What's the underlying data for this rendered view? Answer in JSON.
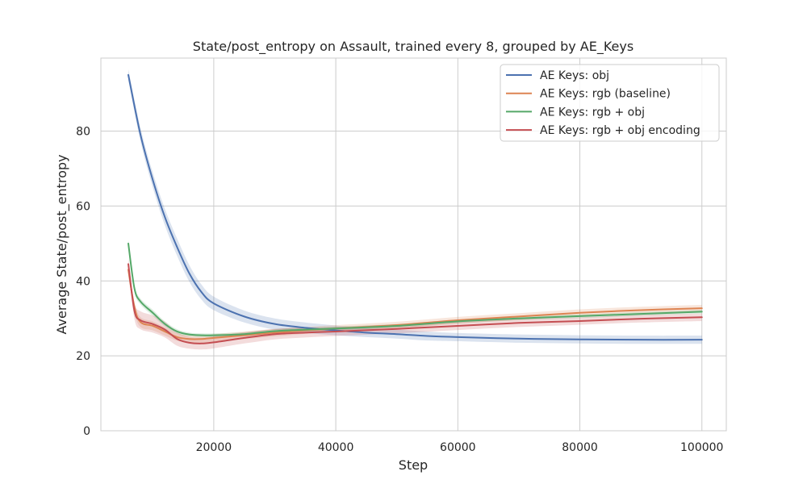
{
  "chart_data": {
    "type": "line",
    "title": "State/post_entropy on Assault, trained every 8, grouped by AE_Keys",
    "xlabel": "Step",
    "ylabel": "Average State/post_entropy",
    "xlim": [
      1500,
      104000
    ],
    "ylim": [
      0,
      99.5
    ],
    "xticks": [
      20000,
      40000,
      60000,
      80000,
      100000
    ],
    "xtick_labels": [
      "20000",
      "40000",
      "60000",
      "80000",
      "100000"
    ],
    "yticks": [
      0,
      20,
      40,
      60,
      80
    ],
    "ytick_labels": [
      "0",
      "20",
      "40",
      "60",
      "80"
    ],
    "grid": true,
    "legend_position": "top-right",
    "series": [
      {
        "name": "AE Keys: obj",
        "color": "#4c72b0",
        "x": [
          6000,
          8000,
          10000,
          12000,
          14000,
          16000,
          18000,
          20000,
          25000,
          30000,
          35000,
          40000,
          45000,
          50000,
          55000,
          60000,
          70000,
          80000,
          90000,
          100000
        ],
        "y": [
          95,
          79,
          67,
          57,
          49,
          42,
          37,
          34,
          30.5,
          28.5,
          27.5,
          26.8,
          26.2,
          25.8,
          25.3,
          25,
          24.6,
          24.4,
          24.3,
          24.3
        ],
        "band": [
          1.5,
          1.8,
          2.0,
          2.2,
          2.3,
          2.2,
          2.0,
          1.8,
          1.6,
          1.5,
          1.4,
          1.3,
          1.2,
          1.2,
          1.2,
          1.1,
          1.1,
          1.1,
          1.1,
          1.1
        ]
      },
      {
        "name": "AE Keys: rgb (baseline)",
        "color": "#dd8452",
        "x": [
          6000,
          7000,
          8000,
          10000,
          12000,
          14000,
          16000,
          18000,
          20000,
          25000,
          30000,
          35000,
          40000,
          50000,
          60000,
          70000,
          80000,
          90000,
          100000
        ],
        "y": [
          43,
          33,
          29,
          28,
          26.5,
          25,
          24.5,
          24.5,
          24.8,
          25.5,
          26.2,
          26.8,
          27.3,
          28.2,
          29.5,
          30.5,
          31.5,
          32.2,
          32.7
        ],
        "band": [
          1.5,
          1.4,
          1.3,
          1.2,
          1.1,
          1.0,
          1.0,
          1.0,
          1.0,
          1.0,
          1.0,
          0.9,
          0.9,
          0.9,
          0.9,
          0.9,
          0.9,
          0.9,
          0.9
        ]
      },
      {
        "name": "AE Keys: rgb + obj",
        "color": "#55a868",
        "x": [
          6000,
          7000,
          8000,
          10000,
          12000,
          14000,
          16000,
          18000,
          20000,
          25000,
          30000,
          35000,
          40000,
          50000,
          60000,
          70000,
          80000,
          90000,
          100000
        ],
        "y": [
          50,
          38,
          34.5,
          31.5,
          28.5,
          26.5,
          25.7,
          25.5,
          25.5,
          25.8,
          26.6,
          27,
          27.3,
          28,
          29.2,
          30,
          30.6,
          31.2,
          31.8
        ],
        "band": [
          1.0,
          0.9,
          0.8,
          0.8,
          0.7,
          0.6,
          0.5,
          0.5,
          0.5,
          0.5,
          0.5,
          0.5,
          0.5,
          0.5,
          0.5,
          0.5,
          0.5,
          0.5,
          0.5
        ]
      },
      {
        "name": "AE Keys: rgb + obj encoding",
        "color": "#c44e52",
        "x": [
          6000,
          7000,
          8000,
          10000,
          12000,
          14000,
          16000,
          18000,
          20000,
          25000,
          30000,
          35000,
          40000,
          50000,
          60000,
          70000,
          80000,
          90000,
          100000
        ],
        "y": [
          44.5,
          32,
          29.5,
          28.5,
          27,
          24.5,
          23.5,
          23.3,
          23.6,
          24.8,
          25.8,
          26.2,
          26.5,
          27.2,
          28,
          28.8,
          29.3,
          29.9,
          30.3
        ],
        "band": [
          1.5,
          2.2,
          2.4,
          2.3,
          2.1,
          1.8,
          1.6,
          1.6,
          1.6,
          1.5,
          1.4,
          1.3,
          1.2,
          1.2,
          1.1,
          1.1,
          1.0,
          1.0,
          1.0
        ]
      }
    ]
  }
}
